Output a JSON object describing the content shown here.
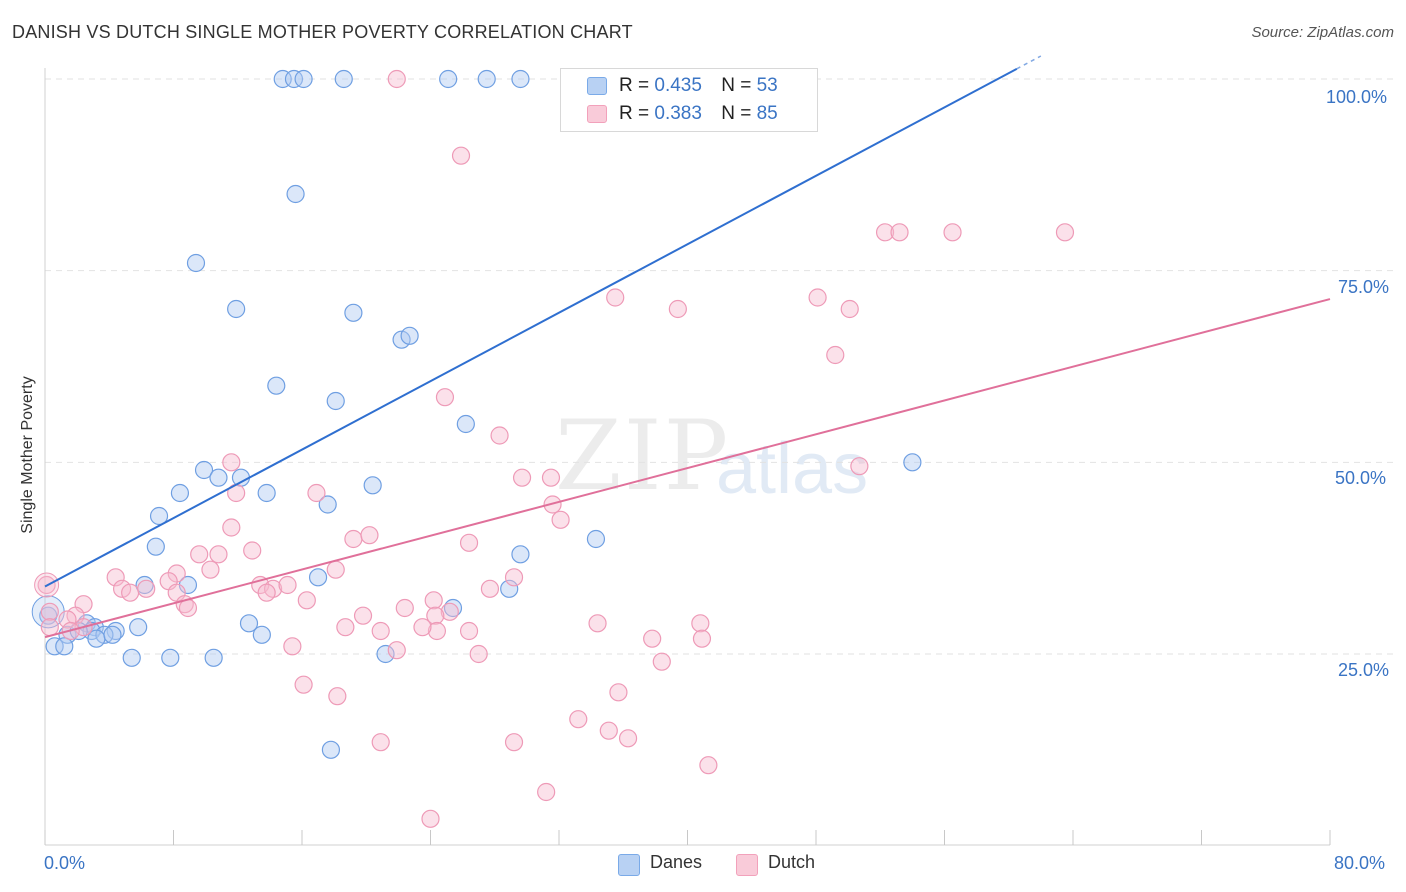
{
  "title": "DANISH VS DUTCH SINGLE MOTHER POVERTY CORRELATION CHART",
  "source": "Source: ZipAtlas.com",
  "watermark": {
    "zip": "ZIP",
    "atlas": "atlas"
  },
  "chart_data": {
    "type": "scatter",
    "title": "DANISH VS DUTCH SINGLE MOTHER POVERTY CORRELATION CHART",
    "xlabel": "",
    "ylabel": "Single Mother Poverty",
    "xlim": [
      0,
      80
    ],
    "ylim": [
      0,
      105
    ],
    "x_tick_labels": {
      "min": "0.0%",
      "max": "80.0%"
    },
    "y_tick_labels": [
      "25.0%",
      "50.0%",
      "75.0%",
      "100.0%"
    ],
    "y_ticks": [
      25,
      50,
      75,
      100
    ],
    "grid": true,
    "legend_position": "top-center",
    "legend": [
      {
        "name": "Danes",
        "R_label": "R =",
        "R": "0.435",
        "N_label": "N =",
        "N": "53",
        "color": "#7aaae8"
      },
      {
        "name": "Dutch",
        "R_label": "R =",
        "R": "0.383",
        "N_label": "N =",
        "N": "85",
        "color": "#f2a1bb"
      }
    ],
    "series": [
      {
        "name": "Danes",
        "color": "#7aaae8",
        "line_color": "#2f6fd0",
        "trend": {
          "x0": 0,
          "y0": 33.8,
          "x1": 62,
          "y1": 103,
          "dash_from": 60.5
        },
        "points": [
          [
            14.8,
            100
          ],
          [
            15.5,
            100
          ],
          [
            16.1,
            100
          ],
          [
            18.6,
            100
          ],
          [
            25.1,
            100
          ],
          [
            27.5,
            100
          ],
          [
            29.6,
            100
          ],
          [
            15.6,
            85
          ],
          [
            9.4,
            76
          ],
          [
            11.9,
            70
          ],
          [
            19.2,
            69.5
          ],
          [
            22.2,
            66
          ],
          [
            22.7,
            66.5
          ],
          [
            14.4,
            60
          ],
          [
            18.1,
            58
          ],
          [
            26.2,
            55
          ],
          [
            9.9,
            49
          ],
          [
            10.8,
            48
          ],
          [
            12.2,
            48
          ],
          [
            8.4,
            46
          ],
          [
            13.8,
            46
          ],
          [
            17.6,
            44.5
          ],
          [
            20.4,
            47
          ],
          [
            7.1,
            43
          ],
          [
            6.9,
            39
          ],
          [
            34.3,
            40
          ],
          [
            29.6,
            38
          ],
          [
            17,
            35
          ],
          [
            8.9,
            34
          ],
          [
            6.2,
            34
          ],
          [
            28.9,
            33.5
          ],
          [
            25.4,
            31
          ],
          [
            0.2,
            30
          ],
          [
            2.6,
            29
          ],
          [
            3.1,
            28.5
          ],
          [
            2.9,
            28
          ],
          [
            1.4,
            27.5
          ],
          [
            5.8,
            28.5
          ],
          [
            4.4,
            28
          ],
          [
            3.7,
            27.5
          ],
          [
            3.2,
            27
          ],
          [
            12.7,
            29
          ],
          [
            13.5,
            27.5
          ],
          [
            0.6,
            26
          ],
          [
            1.2,
            26
          ],
          [
            5.4,
            24.5
          ],
          [
            7.8,
            24.5
          ],
          [
            10.5,
            24.5
          ],
          [
            21.2,
            25
          ],
          [
            17.8,
            12.5
          ],
          [
            54,
            50
          ],
          [
            4.2,
            27.5
          ],
          [
            2.1,
            28
          ]
        ]
      },
      {
        "name": "Dutch",
        "color": "#f2a1bb",
        "line_color": "#e0709a",
        "trend": {
          "x0": 0,
          "y0": 27.2,
          "x1": 80,
          "y1": 71.3
        },
        "points": [
          [
            21.9,
            100
          ],
          [
            37.2,
            100
          ],
          [
            38.4,
            100
          ],
          [
            25.9,
            90
          ],
          [
            52.3,
            80
          ],
          [
            53.2,
            80
          ],
          [
            56.5,
            80
          ],
          [
            63.5,
            80
          ],
          [
            35.5,
            71.5
          ],
          [
            39.4,
            70
          ],
          [
            48.1,
            71.5
          ],
          [
            50.1,
            70
          ],
          [
            49.2,
            64
          ],
          [
            24.9,
            58.5
          ],
          [
            28.3,
            53.5
          ],
          [
            11.6,
            50
          ],
          [
            29.7,
            48
          ],
          [
            31.5,
            48
          ],
          [
            50.7,
            49.5
          ],
          [
            11.9,
            46
          ],
          [
            16.9,
            46
          ],
          [
            31.6,
            44.5
          ],
          [
            32.1,
            42.5
          ],
          [
            11.6,
            41.5
          ],
          [
            19.2,
            40
          ],
          [
            20.2,
            40.5
          ],
          [
            10.8,
            38
          ],
          [
            12.9,
            38.5
          ],
          [
            9.6,
            38
          ],
          [
            26.4,
            39.5
          ],
          [
            8.2,
            35.5
          ],
          [
            10.3,
            36
          ],
          [
            18.1,
            36
          ],
          [
            29.2,
            35
          ],
          [
            0.1,
            34
          ],
          [
            4.4,
            35
          ],
          [
            7.7,
            34.5
          ],
          [
            13.4,
            34
          ],
          [
            14.2,
            33.5
          ],
          [
            4.8,
            33.5
          ],
          [
            5.3,
            33
          ],
          [
            6.3,
            33.5
          ],
          [
            8.2,
            33
          ],
          [
            13.8,
            33
          ],
          [
            2.4,
            31.5
          ],
          [
            1.9,
            30
          ],
          [
            0.3,
            30.5
          ],
          [
            8.7,
            31.5
          ],
          [
            8.9,
            31
          ],
          [
            16.3,
            32
          ],
          [
            24.2,
            32
          ],
          [
            27.7,
            33.5
          ],
          [
            22.4,
            31
          ],
          [
            19.8,
            30
          ],
          [
            25.2,
            30.5
          ],
          [
            1.4,
            29.5
          ],
          [
            2.4,
            28.5
          ],
          [
            1.6,
            28
          ],
          [
            24.3,
            30
          ],
          [
            18.7,
            28.5
          ],
          [
            24.4,
            28
          ],
          [
            26.4,
            28
          ],
          [
            20.9,
            28
          ],
          [
            23.5,
            28.5
          ],
          [
            34.4,
            29
          ],
          [
            40.8,
            29
          ],
          [
            40.9,
            27
          ],
          [
            37.8,
            27
          ],
          [
            15.4,
            26
          ],
          [
            21.9,
            25.5
          ],
          [
            27,
            25
          ],
          [
            38.4,
            24
          ],
          [
            16.1,
            21
          ],
          [
            18.2,
            19.5
          ],
          [
            35.7,
            20
          ],
          [
            33.2,
            16.5
          ],
          [
            35.1,
            15
          ],
          [
            36.3,
            14
          ],
          [
            41.3,
            10.5
          ],
          [
            20.9,
            13.5
          ],
          [
            29.2,
            13.5
          ],
          [
            31.2,
            7
          ],
          [
            24,
            3.5
          ],
          [
            15.1,
            34
          ],
          [
            0.3,
            28.5
          ]
        ]
      }
    ]
  }
}
